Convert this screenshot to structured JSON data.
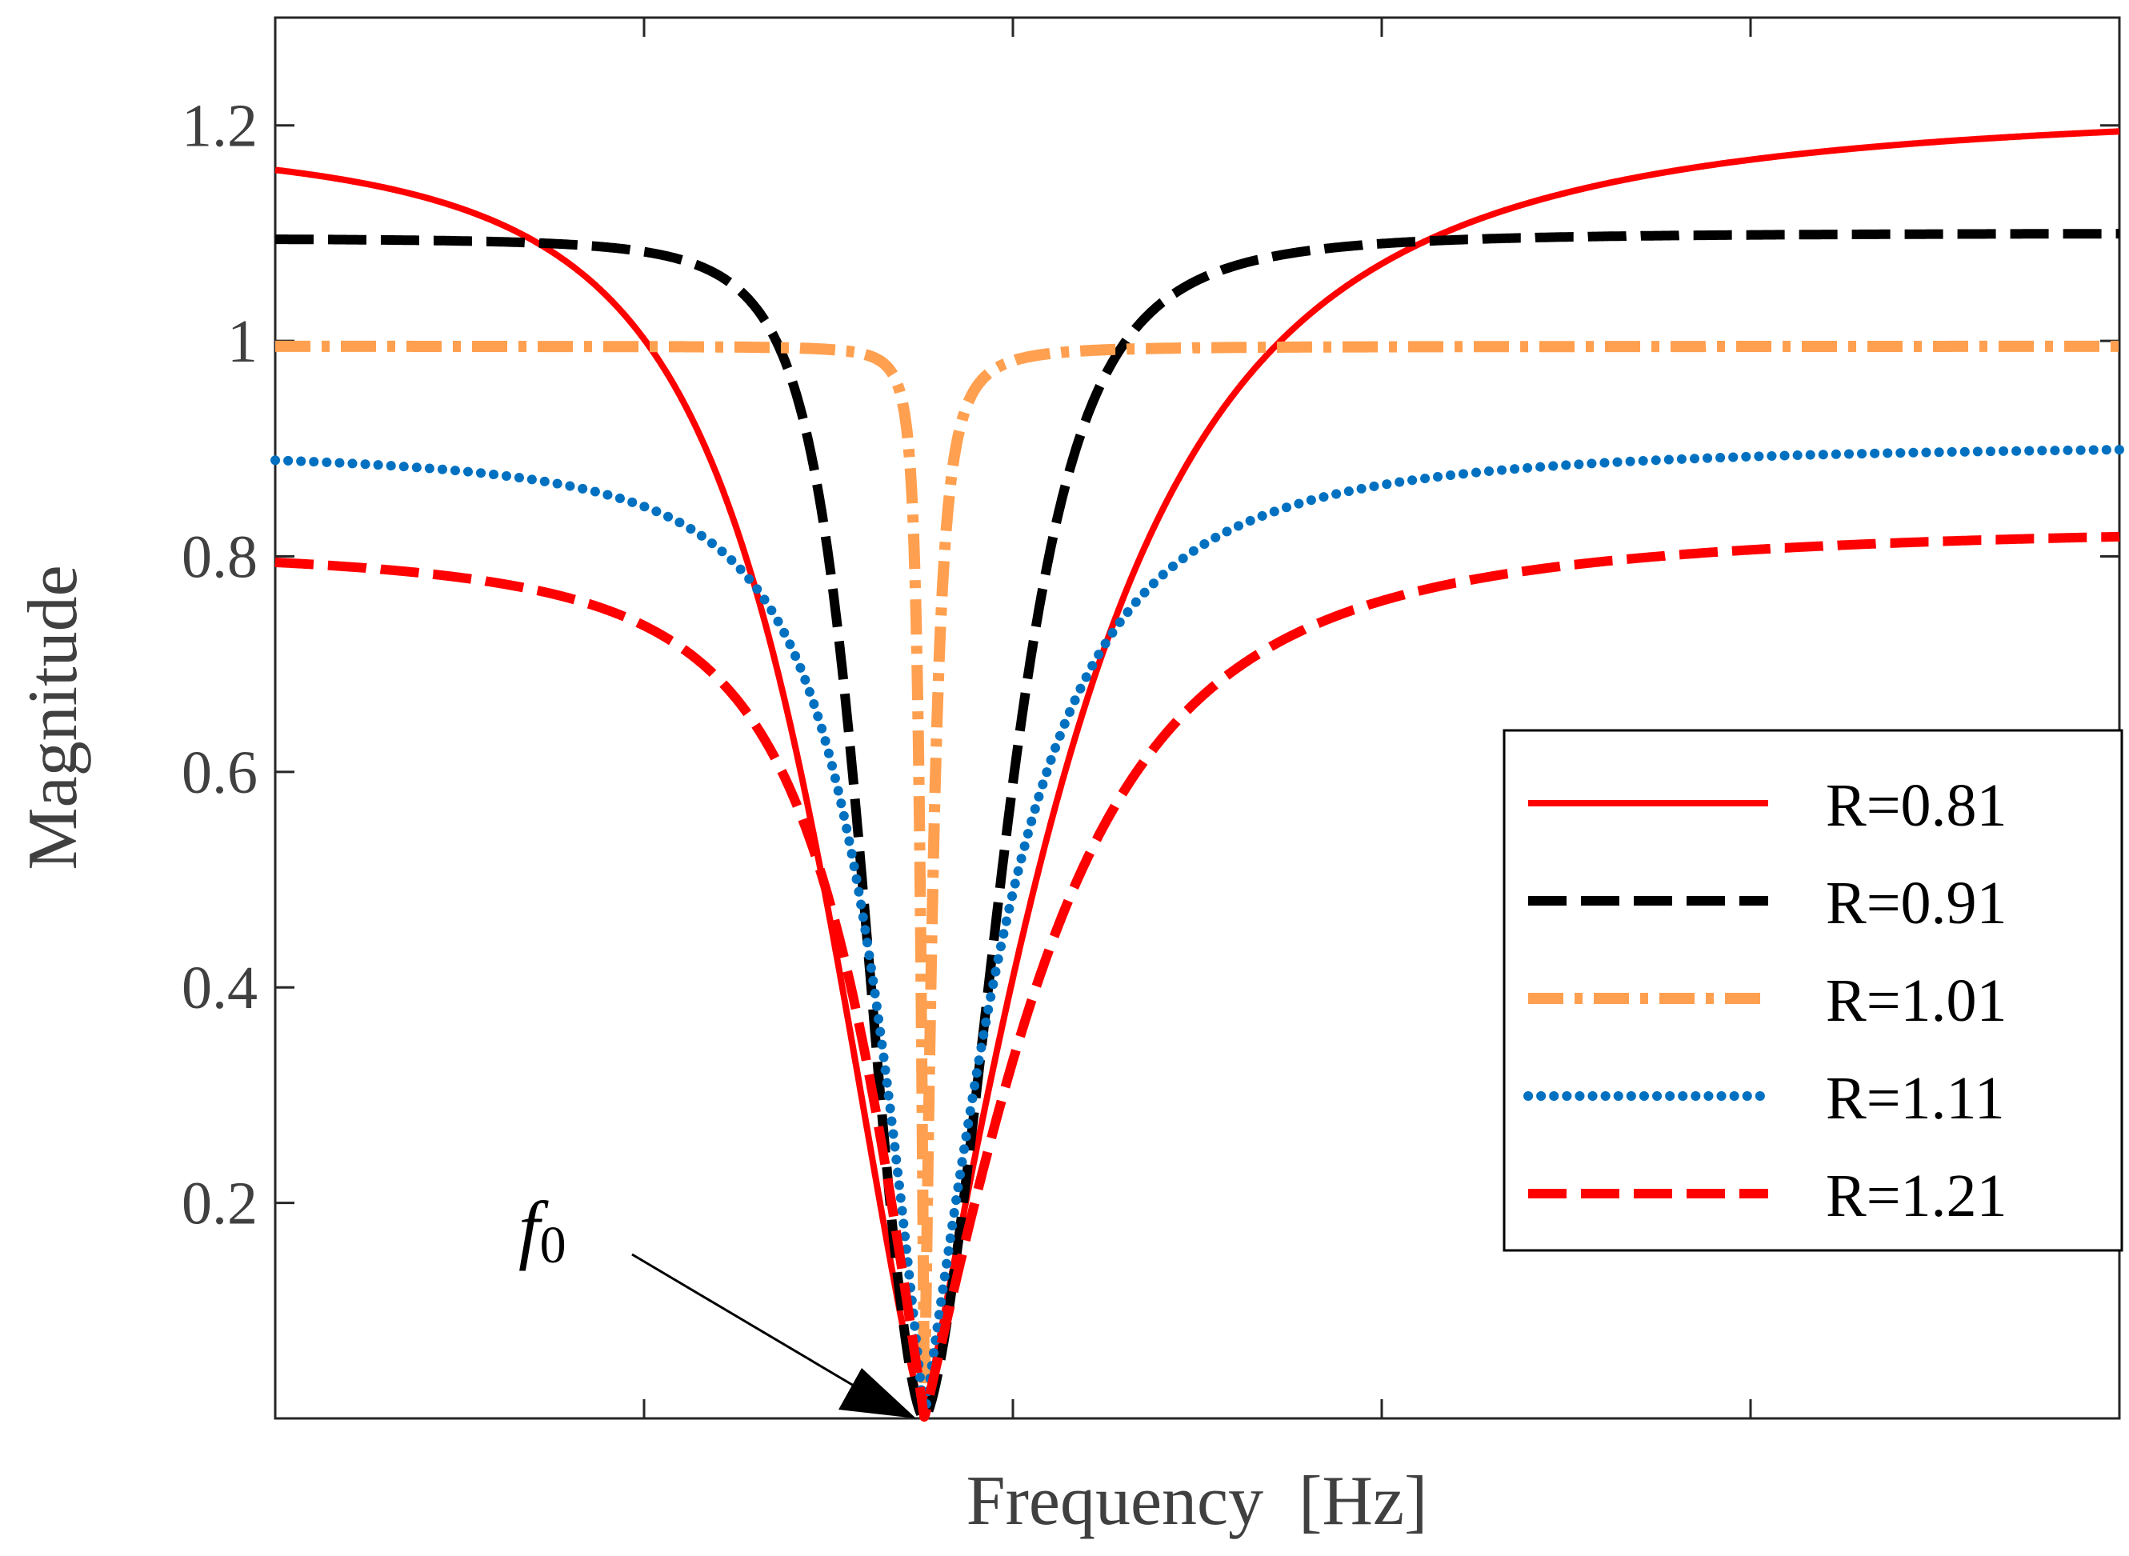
{
  "chart_data": {
    "type": "line",
    "title": "",
    "xlabel": "Frequency  [Hz]",
    "ylabel": "Magnitude",
    "xlim": [
      0,
      1
    ],
    "ylim": [
      0,
      1.3
    ],
    "x_ticks": [
      0.2,
      0.4,
      0.6,
      0.8
    ],
    "y_ticks": [
      0.2,
      0.4,
      0.6,
      0.8,
      1.0,
      1.2
    ],
    "y_tick_labels": [
      "0.2",
      "0.4",
      "0.6",
      "0.8",
      "1",
      "1.2"
    ],
    "notch_frequency": 0.352,
    "grid": false,
    "legend_position": "bottom-right",
    "annotation": {
      "text": "f",
      "subscript": "0",
      "points_to": [
        0.352,
        0
      ]
    },
    "series": [
      {
        "name": "R=0.81",
        "color": "#ff0000",
        "style": "solid",
        "left_level": 1.19,
        "right_level": 1.22,
        "half_width_left": 0.105,
        "half_width_right": 0.135,
        "gamma_left": 1.2,
        "gamma_right": 1.0
      },
      {
        "name": "R=0.91",
        "color": "#000000",
        "style": "dashed",
        "left_level": 1.095,
        "right_level": 1.1,
        "half_width_left": 0.05,
        "half_width_right": 0.065,
        "gamma_left": 1.7,
        "gamma_right": 1.5
      },
      {
        "name": "R=1.01",
        "color": "#ffa050",
        "style": "dash-dot",
        "left_level": 0.995,
        "right_level": 0.995,
        "half_width_left": 0.004,
        "half_width_right": 0.008,
        "gamma_left": 1.0,
        "gamma_right": 1.0
      },
      {
        "name": "R=1.11",
        "color": "#0070c0",
        "style": "dotted",
        "left_level": 0.9,
        "right_level": 0.905,
        "half_width_left": 0.055,
        "half_width_right": 0.075,
        "gamma_left": 1.0,
        "gamma_right": 1.0
      },
      {
        "name": "R=1.21",
        "color": "#ff0000",
        "style": "dashed",
        "left_level": 0.81,
        "right_level": 0.83,
        "half_width_left": 0.07,
        "half_width_right": 0.11,
        "gamma_left": 1.0,
        "gamma_right": 1.0
      }
    ]
  }
}
